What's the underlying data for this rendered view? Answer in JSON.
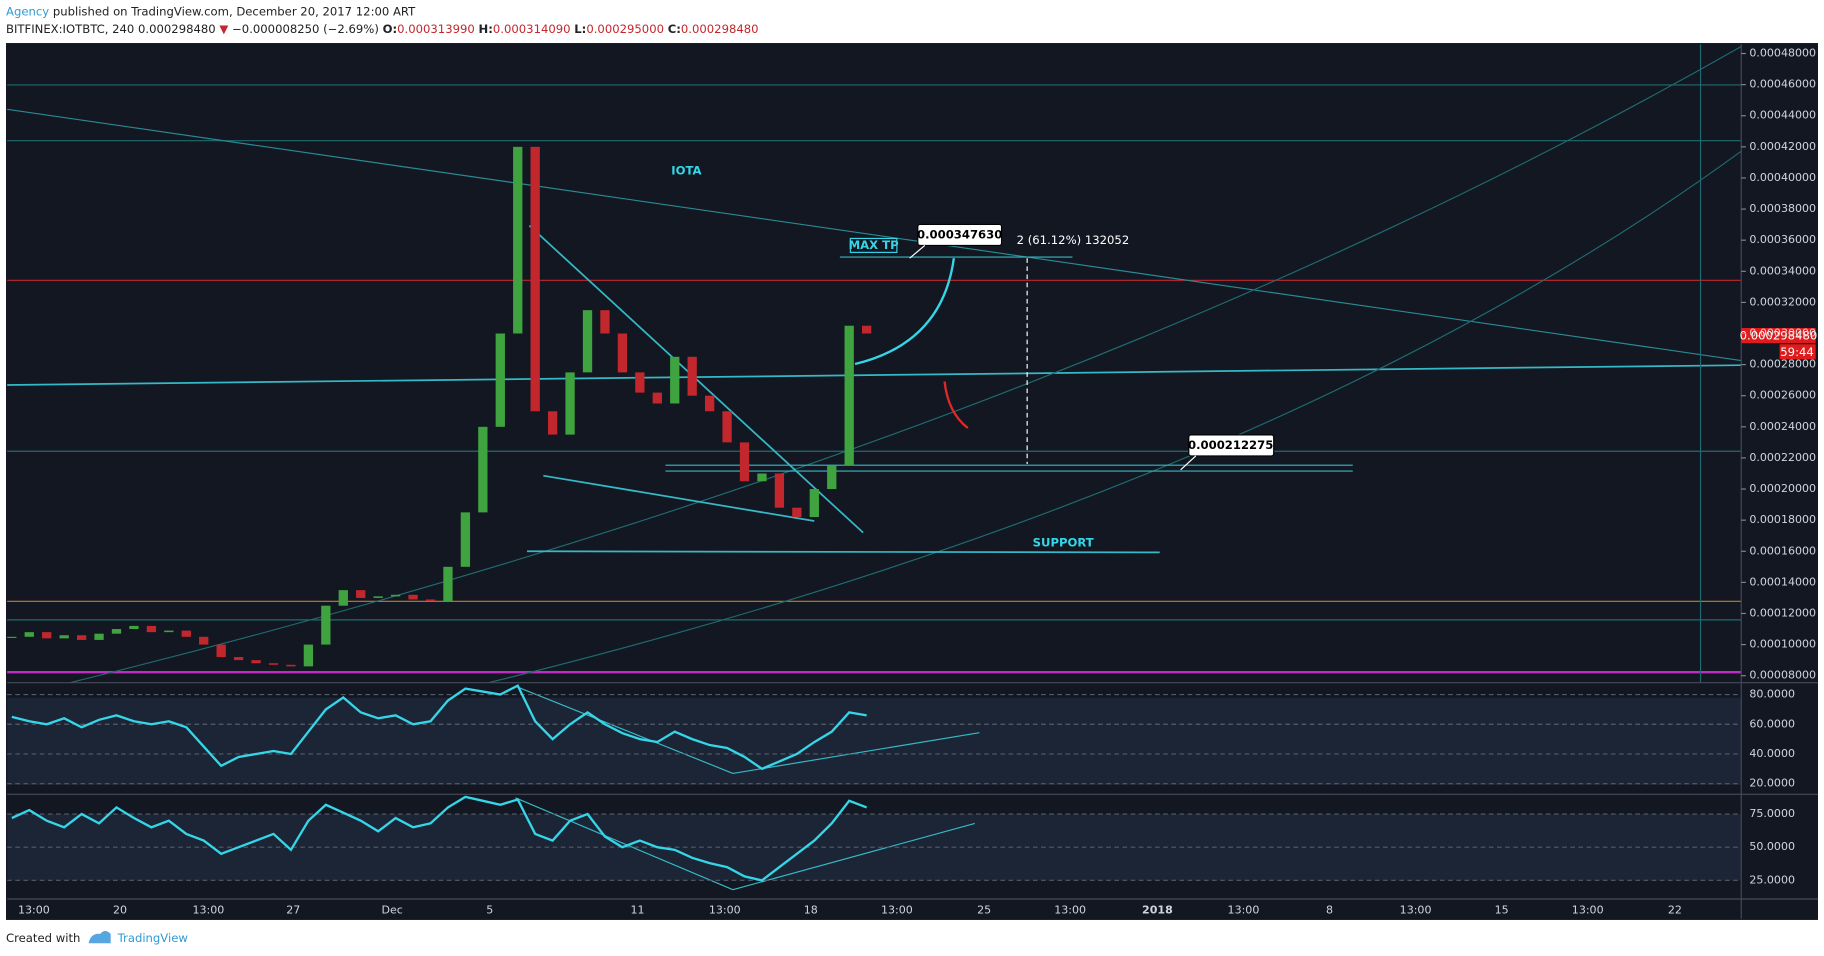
{
  "header": {
    "author": "Agency",
    "published": "published on TradingView.com, December 20, 2017 12:00 ART",
    "symbol": "BITFINEX:IOTBTC, 240",
    "last": "0.000298480",
    "change": "−0.000008250 (−2.69%)",
    "o_label": "O:",
    "open": "0.000313990",
    "h_label": "H:",
    "high": "0.000314090",
    "l_label": "L:",
    "low": "0.000295000",
    "c_label": "C:",
    "close": "0.000298480"
  },
  "chart_data": {
    "type": "candlestick",
    "values": [
      0.000105,
      0.000108,
      0.000104,
      0.000106,
      0.000103,
      0.000107,
      0.00011,
      0.000112,
      0.000108,
      0.000109,
      0.000105,
      0.0001,
      9.2e-05,
      9e-05,
      8.8e-05,
      8.7e-05,
      8.6e-05,
      0.0001,
      0.000125,
      0.000135,
      0.00013,
      0.000131,
      0.000132,
      0.000129,
      0.000128,
      0.00015,
      0.000185,
      0.00024,
      0.0003,
      0.00042,
      0.00025,
      0.000235,
      0.000275,
      0.000315,
      0.0003,
      0.000275,
      0.000262,
      0.000255,
      0.000285,
      0.00026,
      0.00025,
      0.00023,
      0.000205,
      0.00021,
      0.000188,
      0.000182,
      0.0002,
      0.000215,
      0.000305,
      0.0003
    ],
    "up_color": "#3fa33f",
    "down_color": "#c2272d",
    "ylim": [
      7.55e-05,
      0.000486
    ],
    "yticks": [
      {
        "value": 8e-05,
        "label": "0.00008000"
      },
      {
        "value": 0.0001,
        "label": "0.00010000"
      },
      {
        "value": 0.00012,
        "label": "0.00012000"
      },
      {
        "value": 0.00014,
        "label": "0.00014000"
      },
      {
        "value": 0.00016,
        "label": "0.00016000"
      },
      {
        "value": 0.00018,
        "label": "0.00018000"
      },
      {
        "value": 0.0002,
        "label": "0.00020000"
      },
      {
        "value": 0.00022,
        "label": "0.00022000"
      },
      {
        "value": 0.00024,
        "label": "0.00024000"
      },
      {
        "value": 0.00026,
        "label": "0.00026000"
      },
      {
        "value": 0.00028,
        "label": "0.00028000"
      },
      {
        "value": 0.0003,
        "label": "0.00030000"
      },
      {
        "value": 0.00032,
        "label": "0.00032000"
      },
      {
        "value": 0.00034,
        "label": "0.00034000"
      },
      {
        "value": 0.00036,
        "label": "0.00036000"
      },
      {
        "value": 0.00038,
        "label": "0.00038000"
      },
      {
        "value": 0.0004,
        "label": "0.00040000"
      },
      {
        "value": 0.00042,
        "label": "0.00042000"
      },
      {
        "value": 0.00044,
        "label": "0.00044000"
      },
      {
        "value": 0.00046,
        "label": "0.00046000"
      },
      {
        "value": 0.00048,
        "label": "0.00048000"
      }
    ],
    "x_labels": [
      "13:00",
      "20",
      "13:00",
      "27",
      "Dec",
      "5",
      "11",
      "13:00",
      "18",
      "13:00",
      "25",
      "13:00",
      "2018",
      "13:00",
      "8",
      "13:00",
      "15",
      "13:00",
      "22"
    ],
    "price_badge": "0.000298480",
    "countdown": "59:44",
    "annotations": {
      "title": "IOTA",
      "max_tp": "MAX TP",
      "target": "0.000347630",
      "measure": "2 (61.12%) 132052",
      "entry": "0.000212275",
      "support": "SUPPORT"
    },
    "rsi": {
      "values": [
        65,
        62,
        60,
        64,
        58,
        63,
        66,
        62,
        60,
        62,
        58,
        45,
        32,
        38,
        40,
        42,
        40,
        55,
        70,
        78,
        68,
        64,
        66,
        60,
        62,
        76,
        84,
        82,
        80,
        86,
        62,
        50,
        60,
        68,
        60,
        54,
        50,
        48,
        55,
        50,
        46,
        44,
        38,
        30,
        35,
        40,
        48,
        55,
        68,
        66
      ],
      "color": "#35d6e8",
      "ylim": [
        13.6,
        87.2
      ],
      "yticks": [
        {
          "value": 20,
          "label": "20.0000"
        },
        {
          "value": 40,
          "label": "40.0000"
        },
        {
          "value": 60,
          "label": "60.0000"
        },
        {
          "value": 80,
          "label": "80.0000"
        }
      ]
    },
    "stoch": {
      "values": [
        72,
        78,
        70,
        65,
        75,
        68,
        80,
        72,
        65,
        70,
        60,
        55,
        45,
        50,
        55,
        60,
        48,
        70,
        82,
        76,
        70,
        62,
        72,
        65,
        68,
        80,
        88,
        85,
        82,
        86,
        60,
        55,
        70,
        75,
        58,
        50,
        55,
        50,
        48,
        42,
        38,
        35,
        28,
        25,
        35,
        45,
        55,
        68,
        85,
        80
      ],
      "color": "#35d6e8",
      "ylim": [
        11.8,
        89
      ],
      "yticks": [
        {
          "value": 25,
          "label": "25.0000"
        },
        {
          "value": 50,
          "label": "50.0000"
        },
        {
          "value": 75,
          "label": "75.0000"
        }
      ]
    }
  },
  "footer": {
    "created": "Created with",
    "brand": "TradingView"
  }
}
